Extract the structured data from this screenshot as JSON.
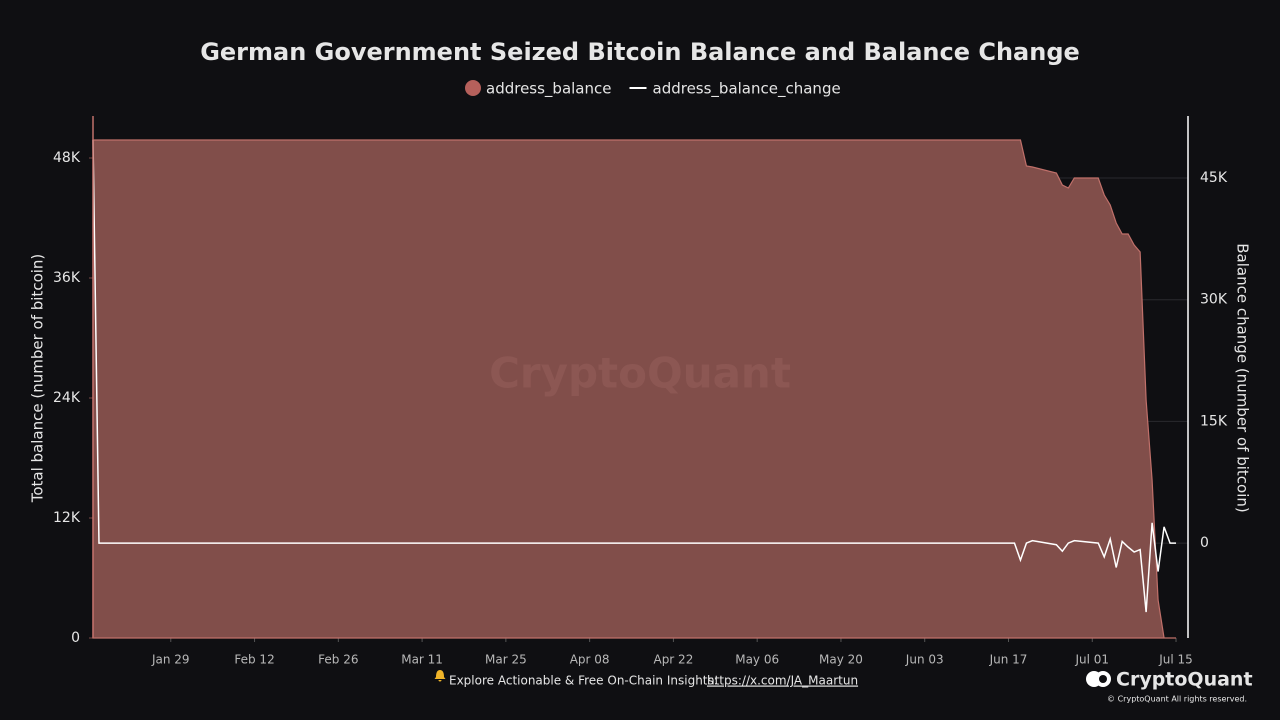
{
  "chart_data": {
    "type": "area_line",
    "title": "German Government Seized Bitcoin Balance and Balance Change",
    "ylabel": "Total balance (number of bitcoin)",
    "y2label": "Balance change (number of bitcoin)",
    "watermark": "CryptoQuant",
    "x": [
      "Jan 16",
      "Jan 17",
      "Jun 18",
      "Jun 19",
      "Jun 20",
      "Jun 21",
      "Jun 25",
      "Jun 26",
      "Jun 27",
      "Jun 28",
      "Jul 02",
      "Jul 03",
      "Jul 04",
      "Jul 05",
      "Jul 06",
      "Jul 07",
      "Jul 08",
      "Jul 09",
      "Jul 10",
      "Jul 11",
      "Jul 12",
      "Jul 13",
      "Jul 14",
      "Jul 15"
    ],
    "xlim": [
      "Jan 16",
      "Jul 17"
    ],
    "xticks": [
      "Jan 29",
      "Feb 12",
      "Feb 26",
      "Mar 11",
      "Mar 25",
      "Apr 08",
      "Apr 22",
      "May 06",
      "May 20",
      "Jun 03",
      "Jun 17",
      "Jul 01",
      "Jul 15"
    ],
    "ylim": [
      0,
      52000
    ],
    "yticks": [
      0,
      {
        "value": 12000,
        "label": "12K"
      },
      {
        "value": 24000,
        "label": "24K"
      },
      {
        "value": 36000,
        "label": "36K"
      },
      {
        "value": 48000,
        "label": "48K"
      }
    ],
    "y2lim": [
      -11700,
      52400
    ],
    "y2ticks": [
      0,
      {
        "value": 15000,
        "label": "15K"
      },
      {
        "value": 30000,
        "label": "30K"
      },
      {
        "value": 45000,
        "label": "45K"
      }
    ],
    "grid": true,
    "series": [
      {
        "name": "address_balance",
        "color": "#b5605b",
        "kind": "area",
        "values": [
          49800,
          49800,
          49800,
          49800,
          47200,
          47100,
          46500,
          45300,
          45000,
          46000,
          46000,
          44300,
          43300,
          41500,
          40400,
          40400,
          39300,
          38600,
          23800,
          15800,
          3800,
          0,
          0,
          0
        ]
      },
      {
        "name": "address_balance_change",
        "color": "#ffffff",
        "kind": "line",
        "axis": "y2",
        "values": [
          49700,
          0,
          0,
          -2100,
          0,
          300,
          -200,
          -1000,
          0,
          300,
          0,
          -1700,
          500,
          -3000,
          200,
          -500,
          -1100,
          -800,
          -8500,
          2500,
          -3500,
          2000,
          0,
          0
        ]
      }
    ]
  },
  "footer": {
    "text": "Explore Actionable & Free On-Chain Insights:",
    "link": "https://x.com/JA_Maartun",
    "brand": "CryptoQuant",
    "copyright": "© CryptoQuant All rights reserved."
  }
}
